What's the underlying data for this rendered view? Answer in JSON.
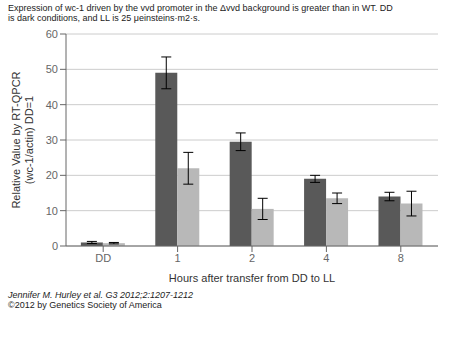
{
  "chart_data": {
    "type": "bar",
    "title": "Expression of wc-1 driven by the vvd promoter in the Δvvd background is greater than in WT. DD\nis dark conditions, and LL is 25 μeinsteins·m2·s.",
    "xlabel": "Hours after transfer from DD to LL",
    "ylabel": "Relative Value by RT-QPCR\n(wc-1/actin) DD=1",
    "annotations": [
      "Jennifer M. Hurley et al. G3 2012;2:1207-1212",
      "©2012 by Genetics Society of America"
    ],
    "categories": [
      "DD",
      "1",
      "2",
      "4",
      "8"
    ],
    "series": [
      {
        "color": "#595959",
        "values": [
          1.0,
          49.0,
          29.5,
          19.0,
          14.0
        ],
        "errors": [
          0.3,
          4.5,
          2.5,
          1.0,
          1.2
        ]
      },
      {
        "color": "#b8b8b8",
        "values": [
          0.8,
          22.0,
          10.5,
          13.5,
          12.0
        ],
        "errors": [
          0.2,
          4.5,
          3.0,
          1.5,
          3.5
        ]
      }
    ],
    "ylim": [
      0,
      60
    ],
    "yticks": [
      0,
      10,
      20,
      30,
      40,
      50,
      60
    ],
    "grid": true
  }
}
